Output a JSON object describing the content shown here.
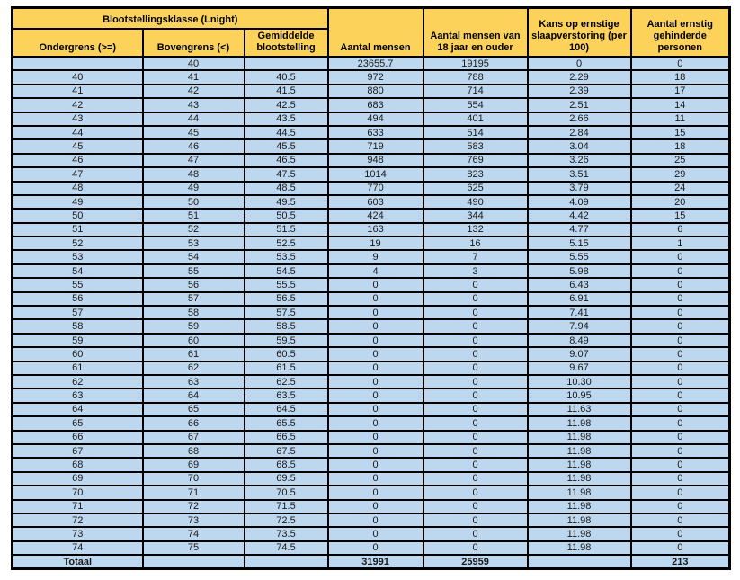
{
  "table": {
    "group_header": "Blootstellingsklasse (Lnight)",
    "columns": [
      "Ondergrens (>=)",
      "Bovengrens (<)",
      "Gemiddelde blootstelling",
      "Aantal mensen",
      "Aantal mensen van 18 jaar en ouder",
      "Kans op ernstige slaapverstoring (per 100)",
      "Aantal ernstig gehinderde personen"
    ],
    "rows": [
      [
        "",
        "40",
        "",
        "23655.7",
        "19195",
        "0",
        "0"
      ],
      [
        "40",
        "41",
        "40.5",
        "972",
        "788",
        "2.29",
        "18"
      ],
      [
        "41",
        "42",
        "41.5",
        "880",
        "714",
        "2.39",
        "17"
      ],
      [
        "42",
        "43",
        "42.5",
        "683",
        "554",
        "2.51",
        "14"
      ],
      [
        "43",
        "44",
        "43.5",
        "494",
        "401",
        "2.66",
        "11"
      ],
      [
        "44",
        "45",
        "44.5",
        "633",
        "514",
        "2.84",
        "15"
      ],
      [
        "45",
        "46",
        "45.5",
        "719",
        "583",
        "3.04",
        "18"
      ],
      [
        "46",
        "47",
        "46.5",
        "948",
        "769",
        "3.26",
        "25"
      ],
      [
        "47",
        "48",
        "47.5",
        "1014",
        "823",
        "3.51",
        "29"
      ],
      [
        "48",
        "49",
        "48.5",
        "770",
        "625",
        "3.79",
        "24"
      ],
      [
        "49",
        "50",
        "49.5",
        "603",
        "490",
        "4.09",
        "20"
      ],
      [
        "50",
        "51",
        "50.5",
        "424",
        "344",
        "4.42",
        "15"
      ],
      [
        "51",
        "52",
        "51.5",
        "163",
        "132",
        "4.77",
        "6"
      ],
      [
        "52",
        "53",
        "52.5",
        "19",
        "16",
        "5.15",
        "1"
      ],
      [
        "53",
        "54",
        "53.5",
        "9",
        "7",
        "5.55",
        "0"
      ],
      [
        "54",
        "55",
        "54.5",
        "4",
        "3",
        "5.98",
        "0"
      ],
      [
        "55",
        "56",
        "55.5",
        "0",
        "0",
        "6.43",
        "0"
      ],
      [
        "56",
        "57",
        "56.5",
        "0",
        "0",
        "6.91",
        "0"
      ],
      [
        "57",
        "58",
        "57.5",
        "0",
        "0",
        "7.41",
        "0"
      ],
      [
        "58",
        "59",
        "58.5",
        "0",
        "0",
        "7.94",
        "0"
      ],
      [
        "59",
        "60",
        "59.5",
        "0",
        "0",
        "8.49",
        "0"
      ],
      [
        "60",
        "61",
        "60.5",
        "0",
        "0",
        "9.07",
        "0"
      ],
      [
        "61",
        "62",
        "61.5",
        "0",
        "0",
        "9.67",
        "0"
      ],
      [
        "62",
        "63",
        "62.5",
        "0",
        "0",
        "10.30",
        "0"
      ],
      [
        "63",
        "64",
        "63.5",
        "0",
        "0",
        "10.95",
        "0"
      ],
      [
        "64",
        "65",
        "64.5",
        "0",
        "0",
        "11.63",
        "0"
      ],
      [
        "65",
        "66",
        "65.5",
        "0",
        "0",
        "11.98",
        "0"
      ],
      [
        "66",
        "67",
        "66.5",
        "0",
        "0",
        "11.98",
        "0"
      ],
      [
        "67",
        "68",
        "67.5",
        "0",
        "0",
        "11.98",
        "0"
      ],
      [
        "68",
        "69",
        "68.5",
        "0",
        "0",
        "11.98",
        "0"
      ],
      [
        "69",
        "70",
        "69.5",
        "0",
        "0",
        "11.98",
        "0"
      ],
      [
        "70",
        "71",
        "70.5",
        "0",
        "0",
        "11.98",
        "0"
      ],
      [
        "71",
        "72",
        "71.5",
        "0",
        "0",
        "11.98",
        "0"
      ],
      [
        "72",
        "73",
        "72.5",
        "0",
        "0",
        "11.98",
        "0"
      ],
      [
        "73",
        "74",
        "73.5",
        "0",
        "0",
        "11.98",
        "0"
      ],
      [
        "74",
        "75",
        "74.5",
        "0",
        "0",
        "11.98",
        "0"
      ]
    ],
    "total_row": {
      "label": "Totaal",
      "aantal_mensen": "31991",
      "aantal_18": "25959",
      "ernstig": "213"
    }
  },
  "colors": {
    "header_bg": "#FCD25B",
    "cell_blue": "#BDD7EE",
    "cell_peach": "#FBE3D5",
    "total_highlight": "#B4C6E7",
    "border": "#000000"
  }
}
